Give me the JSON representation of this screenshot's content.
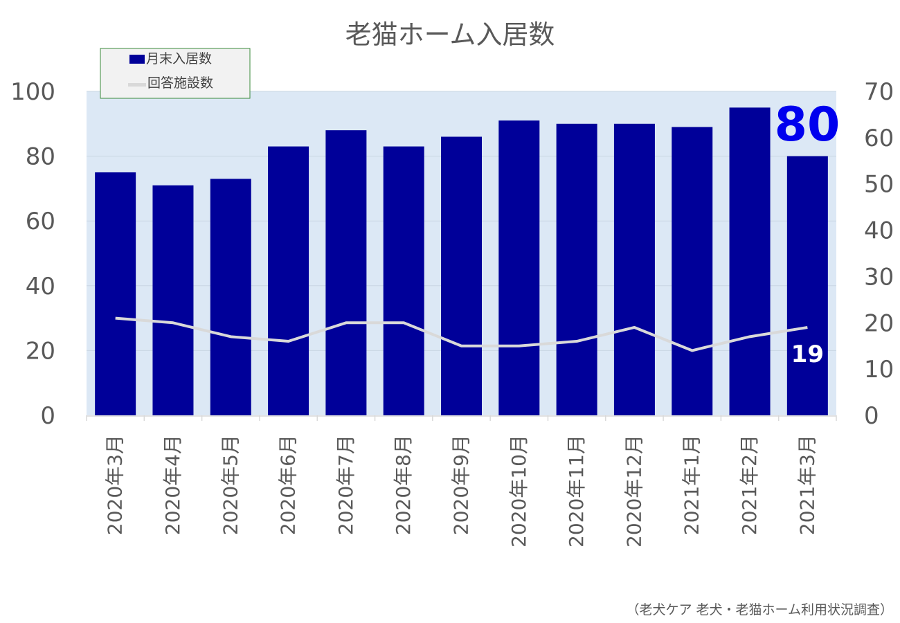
{
  "chart_data": {
    "type": "bar",
    "title": "老猫ホーム入居数",
    "categories": [
      "2020年3月",
      "2020年4月",
      "2020年5月",
      "2020年6月",
      "2020年7月",
      "2020年8月",
      "2020年9月",
      "2020年10月",
      "2020年11月",
      "2020年12月",
      "2021年1月",
      "2021年2月",
      "2021年3月"
    ],
    "series": [
      {
        "name": "月末入居数",
        "type": "bar",
        "axis": "left",
        "color": "#000099",
        "values": [
          75,
          71,
          73,
          83,
          88,
          83,
          86,
          91,
          90,
          90,
          89,
          95,
          80
        ]
      },
      {
        "name": "回答施設数",
        "type": "line",
        "axis": "right",
        "color": "#d9d9d9",
        "values": [
          21,
          20,
          17,
          16,
          20,
          20,
          15,
          15,
          16,
          19,
          14,
          17,
          19
        ]
      }
    ],
    "ylim": [
      0,
      100
    ],
    "yticks": [
      0,
      20,
      40,
      60,
      80,
      100
    ],
    "y2lim": [
      0,
      70
    ],
    "y2ticks": [
      0,
      10,
      20,
      30,
      40,
      50,
      60,
      70
    ],
    "grid": true,
    "plot_background": "#dce8f5",
    "legend_position": "top-left",
    "annotations": [
      {
        "text": "80",
        "target": "bar-last",
        "color": "#0000ee"
      },
      {
        "text": "19",
        "target": "line-last",
        "color": "#ffffff"
      }
    ],
    "source": "（老犬ケア 老犬・老猫ホーム利用状況調査）"
  }
}
